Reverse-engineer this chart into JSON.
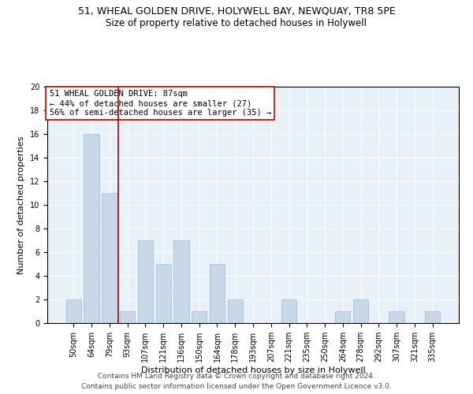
{
  "title1": "51, WHEAL GOLDEN DRIVE, HOLYWELL BAY, NEWQUAY, TR8 5PE",
  "title2": "Size of property relative to detached houses in Holywell",
  "xlabel": "Distribution of detached houses by size in Holywell",
  "ylabel": "Number of detached properties",
  "categories": [
    "50sqm",
    "64sqm",
    "79sqm",
    "93sqm",
    "107sqm",
    "121sqm",
    "136sqm",
    "150sqm",
    "164sqm",
    "178sqm",
    "193sqm",
    "207sqm",
    "221sqm",
    "235sqm",
    "250sqm",
    "264sqm",
    "278sqm",
    "292sqm",
    "307sqm",
    "321sqm",
    "335sqm"
  ],
  "values": [
    2,
    16,
    11,
    1,
    7,
    5,
    7,
    1,
    5,
    2,
    0,
    0,
    2,
    0,
    0,
    1,
    2,
    0,
    1,
    0,
    1
  ],
  "bar_color": "#c8d8e8",
  "bar_edgecolor": "#a0b8cc",
  "vline_x": 2.5,
  "vline_color": "#aa0000",
  "annotation_text": "51 WHEAL GOLDEN DRIVE: 87sqm\n← 44% of detached houses are smaller (27)\n56% of semi-detached houses are larger (35) →",
  "annotation_box_color": "white",
  "annotation_box_edgecolor": "#cc0000",
  "ylim": [
    0,
    20
  ],
  "yticks": [
    0,
    2,
    4,
    6,
    8,
    10,
    12,
    14,
    16,
    18,
    20
  ],
  "bg_color": "#e8f0f8",
  "footer1": "Contains HM Land Registry data © Crown copyright and database right 2024.",
  "footer2": "Contains public sector information licensed under the Open Government Licence v3.0.",
  "title1_fontsize": 9,
  "title2_fontsize": 8.5,
  "xlabel_fontsize": 8,
  "ylabel_fontsize": 8,
  "tick_fontsize": 7,
  "annotation_fontsize": 7.5,
  "footer_fontsize": 6.5
}
